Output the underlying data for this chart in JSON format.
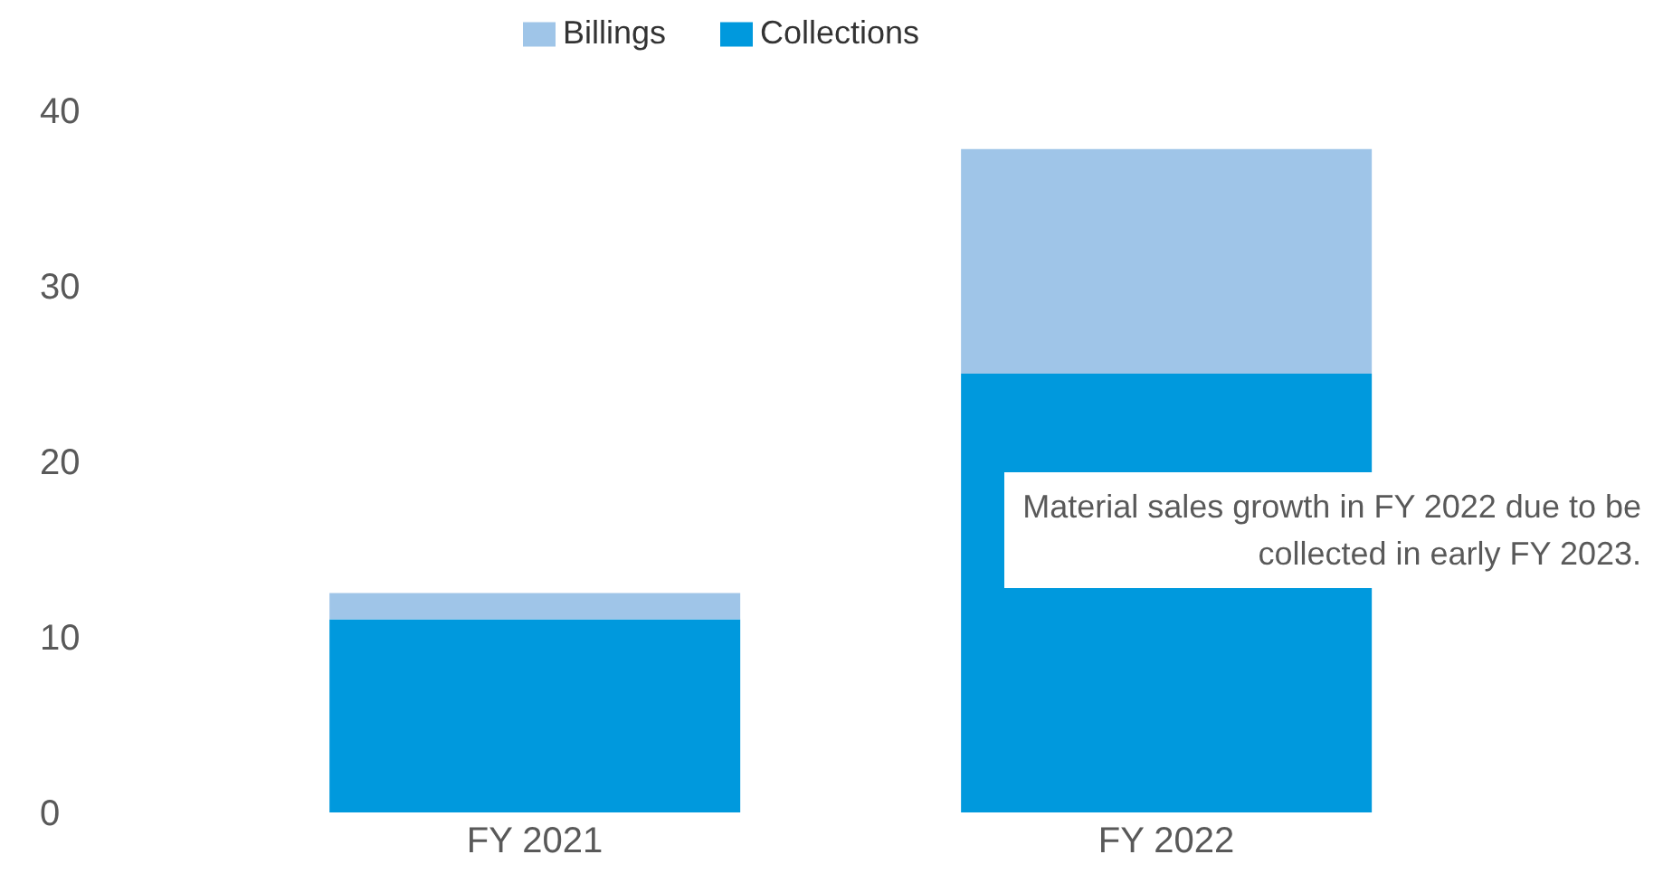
{
  "chart_data": {
    "type": "bar",
    "stacked": true,
    "categories": [
      "FY 2021",
      "FY 2022"
    ],
    "series": [
      {
        "name": "Collections",
        "color": "#0099dd",
        "values": [
          11,
          25
        ]
      },
      {
        "name": "Billings",
        "color": "#9fc5e8",
        "values": [
          1.5,
          12.8
        ]
      }
    ],
    "ylim": [
      0,
      40
    ],
    "yticks": [
      0,
      10,
      20,
      30,
      40
    ],
    "grid": false,
    "legend": "top",
    "annotations": [
      "Material sales growth in FY 2022 due to be collected in early FY 2023."
    ]
  }
}
